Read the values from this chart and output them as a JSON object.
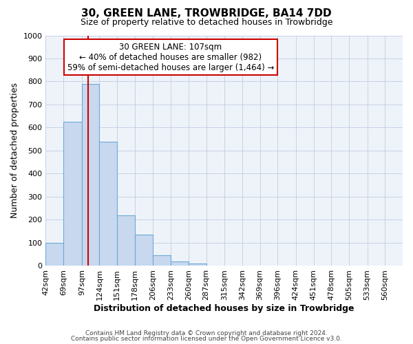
{
  "title": "30, GREEN LANE, TROWBRIDGE, BA14 7DD",
  "subtitle": "Size of property relative to detached houses in Trowbridge",
  "xlabel": "Distribution of detached houses by size in Trowbridge",
  "ylabel": "Number of detached properties",
  "bin_edges": [
    42,
    69,
    97,
    124,
    151,
    178,
    206,
    233,
    260,
    287,
    315,
    342,
    369,
    396,
    424,
    451,
    478,
    505,
    533,
    560,
    587
  ],
  "bar_heights": [
    100,
    625,
    790,
    540,
    220,
    135,
    45,
    20,
    10,
    0,
    0,
    0,
    0,
    0,
    0,
    0,
    0,
    0,
    0,
    0
  ],
  "bar_color": "#c8d8ee",
  "bar_edgecolor": "#6baad8",
  "plot_bg_color": "#eef3fa",
  "ylim": [
    0,
    1000
  ],
  "yticks": [
    0,
    100,
    200,
    300,
    400,
    500,
    600,
    700,
    800,
    900,
    1000
  ],
  "property_size": 107,
  "vline_color": "#cc0000",
  "annotation_line1": "30 GREEN LANE: 107sqm",
  "annotation_line2": "← 40% of detached houses are smaller (982)",
  "annotation_line3": "59% of semi-detached houses are larger (1,464) →",
  "annotation_box_color": "#ffffff",
  "annotation_box_edgecolor": "#cc0000",
  "footer_line1": "Contains HM Land Registry data © Crown copyright and database right 2024.",
  "footer_line2": "Contains public sector information licensed under the Open Government Licence v3.0.",
  "background_color": "#ffffff",
  "grid_color": "#c0cce0",
  "title_fontsize": 11,
  "subtitle_fontsize": 9,
  "tick_fontsize": 8,
  "label_fontsize": 9
}
